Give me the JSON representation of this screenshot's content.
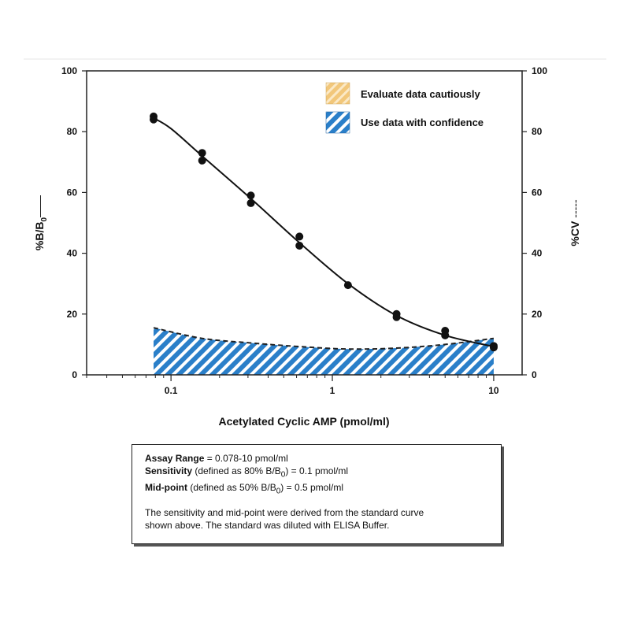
{
  "chart_data": {
    "type": "line",
    "x_scale": "log",
    "xlabel": "Acetylated Cyclic AMP (pmol/ml)",
    "ylabel_left": "%B/B",
    "ylabel_left_sub": "0",
    "ylabel_left_marker": "——",
    "ylabel_right": "%CV",
    "ylabel_right_marker": "-----",
    "xlim": [
      0.03,
      15
    ],
    "ylim": [
      0,
      100
    ],
    "x_ticks": [
      0.1,
      1,
      10
    ],
    "x_tick_labels": [
      "0.1",
      "1",
      "10"
    ],
    "y_ticks": [
      0,
      20,
      40,
      60,
      80,
      100
    ],
    "y_tick_labels": [
      "0",
      "20",
      "40",
      "60",
      "80",
      "100"
    ],
    "grid": false,
    "legend_position": "top-right",
    "legend": [
      {
        "label": "Evaluate data cautiously",
        "color": "#f2c77a",
        "pattern": "diagonal-hatch"
      },
      {
        "label": "Use data with confidence",
        "color": "#2a7fc9",
        "pattern": "diagonal-hatch"
      }
    ],
    "series": [
      {
        "name": "%B/B0",
        "style": "solid-line-with-points",
        "color": "#111111",
        "points": [
          {
            "x": 0.078,
            "y": 85
          },
          {
            "x": 0.078,
            "y": 84
          },
          {
            "x": 0.156,
            "y": 73
          },
          {
            "x": 0.156,
            "y": 70.5
          },
          {
            "x": 0.3125,
            "y": 59
          },
          {
            "x": 0.3125,
            "y": 56.5
          },
          {
            "x": 0.625,
            "y": 45.5
          },
          {
            "x": 0.625,
            "y": 42.5
          },
          {
            "x": 1.25,
            "y": 29.5
          },
          {
            "x": 2.5,
            "y": 20
          },
          {
            "x": 2.5,
            "y": 19
          },
          {
            "x": 5,
            "y": 14.5
          },
          {
            "x": 5,
            "y": 13
          },
          {
            "x": 10,
            "y": 9.5
          },
          {
            "x": 10,
            "y": 9
          }
        ],
        "curve": [
          {
            "x": 0.078,
            "y": 84.5
          },
          {
            "x": 0.1,
            "y": 81
          },
          {
            "x": 0.156,
            "y": 72
          },
          {
            "x": 0.3125,
            "y": 58
          },
          {
            "x": 0.625,
            "y": 43.5
          },
          {
            "x": 1.25,
            "y": 30
          },
          {
            "x": 2.5,
            "y": 19.5
          },
          {
            "x": 5,
            "y": 13
          },
          {
            "x": 10,
            "y": 9.3
          }
        ]
      },
      {
        "name": "%CV",
        "style": "dashed-line-area",
        "color": "#2a7fc9",
        "points": [
          {
            "x": 0.078,
            "y": 15.5
          },
          {
            "x": 0.156,
            "y": 12
          },
          {
            "x": 0.3125,
            "y": 10.5
          },
          {
            "x": 0.625,
            "y": 9.3
          },
          {
            "x": 1.25,
            "y": 8.5
          },
          {
            "x": 2.5,
            "y": 8.8
          },
          {
            "x": 5,
            "y": 10
          },
          {
            "x": 10,
            "y": 12
          }
        ]
      }
    ]
  },
  "info": {
    "range_label": "Assay Range",
    "range_value": "= 0.078-10 pmol/ml",
    "sens_label": "Sensitivity",
    "sens_pre": "(defined as 80% B/B",
    "sens_sub": "0",
    "sens_post": ") = 0.1 pmol/ml",
    "mid_label": "Mid-point",
    "mid_pre": "(defined as 50% B/B",
    "mid_sub": "0",
    "mid_post": ") = 0.5 pmol/ml",
    "note_line1": "The sensitivity and mid-point were derived from the standard curve",
    "note_line2": "shown above. The standard was diluted with ELISA Buffer."
  }
}
